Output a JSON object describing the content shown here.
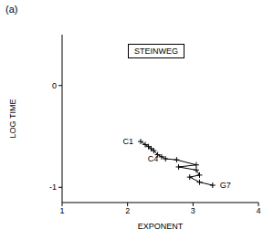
{
  "chart_data": {
    "type": "line",
    "title": "STEINWEG",
    "subtitle": "(a)",
    "x_label": "EXPONENT",
    "y_label": "LOG TIME",
    "x": [
      2.2,
      2.27,
      2.32,
      2.36,
      2.4,
      2.46,
      2.52,
      2.58,
      2.75,
      3.05,
      2.78,
      3.05,
      3.1,
      2.95,
      3.1,
      3.3
    ],
    "values": [
      -0.55,
      -0.58,
      -0.6,
      -0.62,
      -0.64,
      -0.68,
      -0.7,
      -0.72,
      -0.73,
      -0.78,
      -0.8,
      -0.83,
      -0.88,
      -0.9,
      -0.95,
      -0.98
    ],
    "color": "#000000",
    "marker": "plus",
    "line_style": "solid",
    "xlim": [
      1,
      4
    ],
    "xticks": [
      1,
      2,
      3,
      4
    ],
    "ylim": [
      -1.15,
      0.5
    ],
    "yticks": [
      0,
      -1
    ],
    "grid": false,
    "annotations": [
      {
        "text": "C1",
        "x": 2.2,
        "y": -0.55
      },
      {
        "text": "C4",
        "x": 2.58,
        "y": -0.72
      },
      {
        "text": "G7",
        "x": 3.3,
        "y": -0.98
      }
    ]
  }
}
